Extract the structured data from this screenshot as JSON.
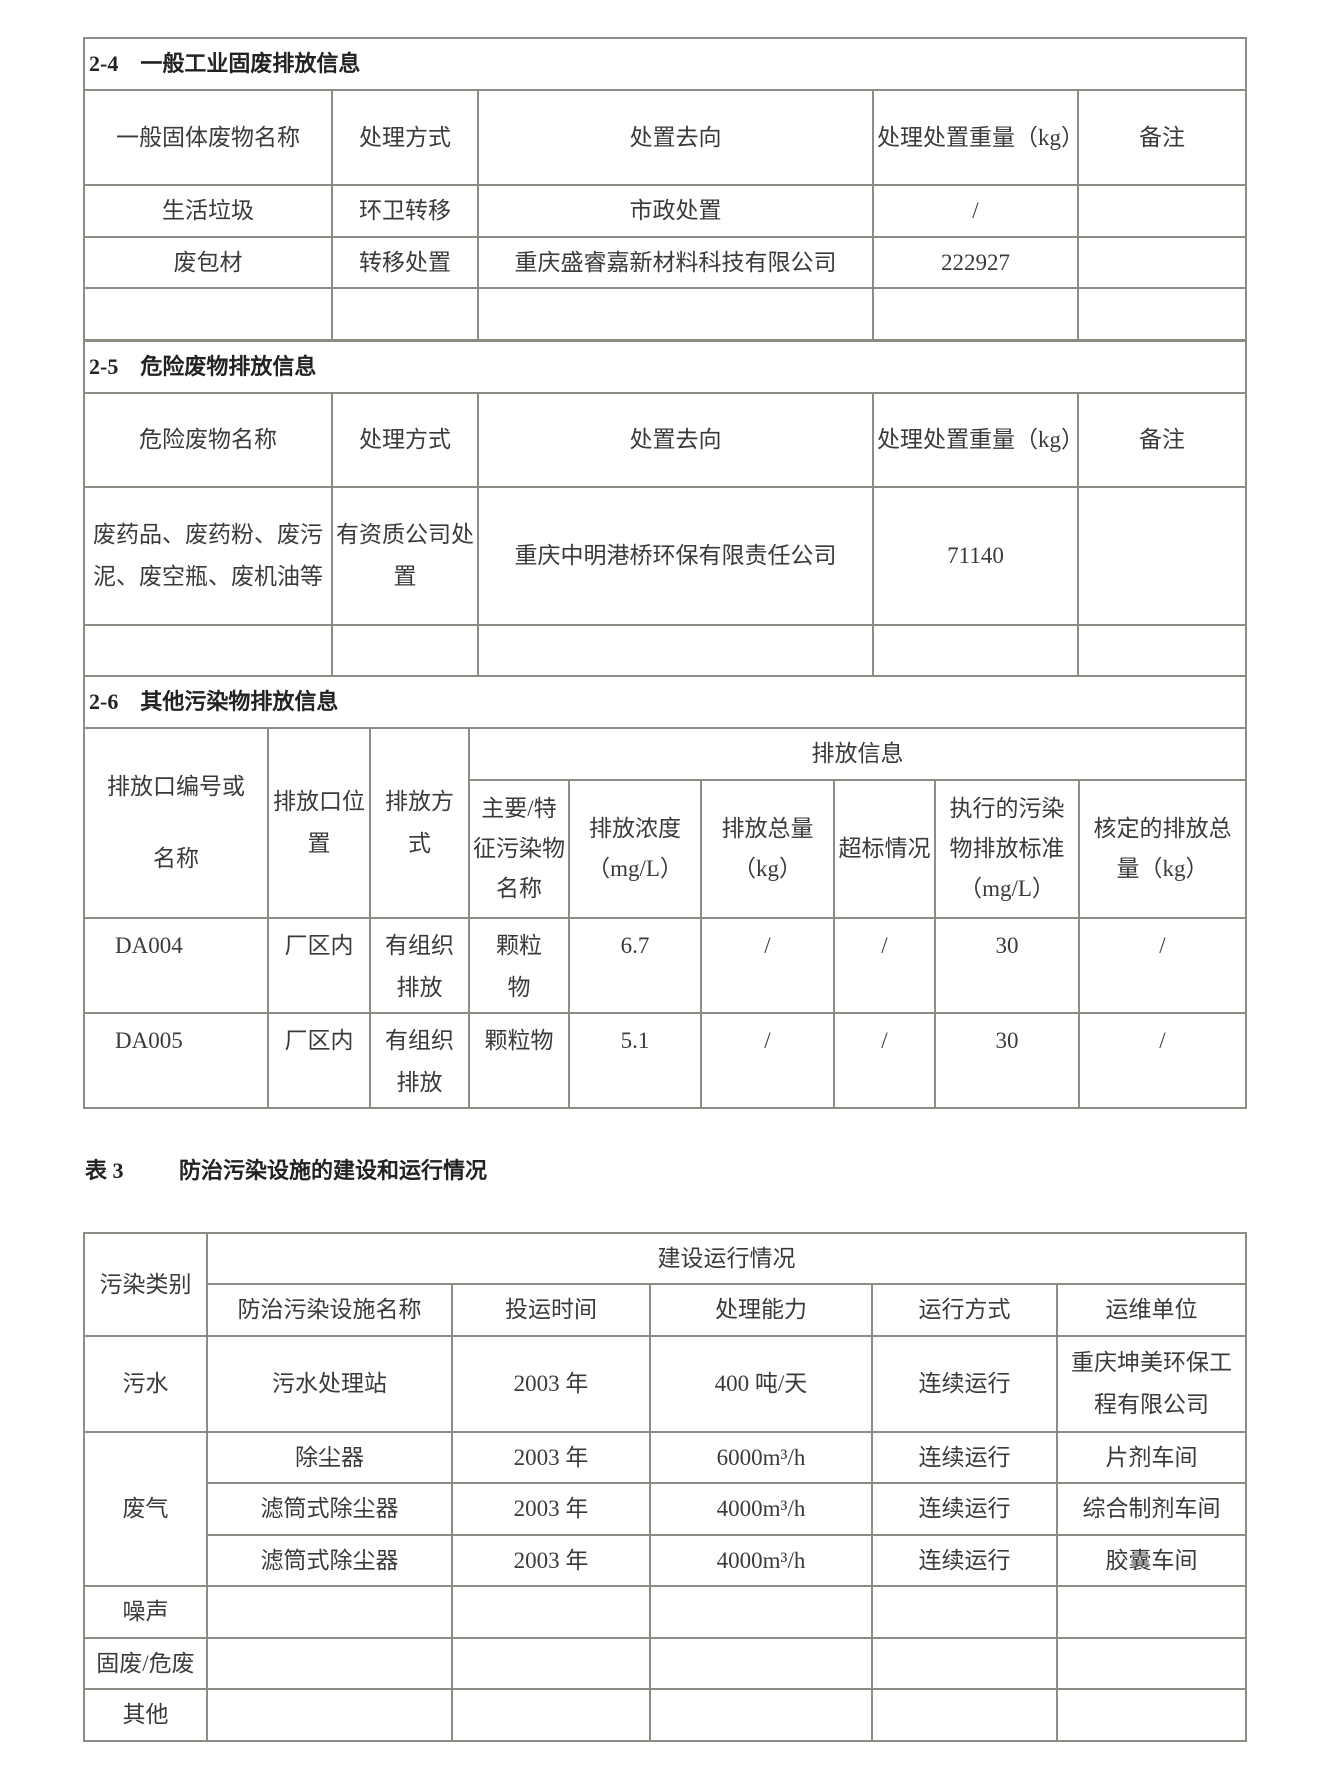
{
  "s24": {
    "title": "2-4　一般工业固废排放信息",
    "headers": [
      "一般固体废物名称",
      "处理方式",
      "处置去向",
      "处理处置重量（kg）",
      "备注"
    ],
    "rows": [
      [
        "生活垃圾",
        "环卫转移",
        "市政处置",
        "/",
        ""
      ],
      [
        "废包材",
        "转移处置",
        "重庆盛睿嘉新材料科技有限公司",
        "222927",
        ""
      ]
    ]
  },
  "s25": {
    "title": "2-5　危险废物排放信息",
    "headers": [
      "危险废物名称",
      "处理方式",
      "处置去向",
      "处理处置重量（kg）",
      "备注"
    ],
    "rows": [
      [
        "废药品、废药粉、废污泥、废空瓶、废机油等",
        "有资质公司处置",
        "重庆中明港桥环保有限责任公司",
        "71140",
        ""
      ]
    ]
  },
  "s26": {
    "title": "2-6　其他污染物排放信息",
    "headers": {
      "outlet_id": "排放口编号或名称",
      "location": "排放口位置",
      "method": "排放方式",
      "group": "排放信息",
      "sub": [
        "主要/特征污染物名称",
        "排放浓度（mg/L）",
        "排放总量（kg）",
        "超标情况",
        "执行的污染物排放标准（mg/L）",
        "核定的排放总量（kg）"
      ]
    },
    "rows": [
      [
        "DA004",
        "厂区内",
        "有组织排放",
        "颗粒物",
        "6.7",
        "/",
        "/",
        "30",
        "/"
      ],
      [
        "DA005",
        "厂区内",
        "有组织排放",
        "颗粒物",
        "5.1",
        "/",
        "/",
        "30",
        "/"
      ]
    ]
  },
  "t3": {
    "caption_no": "表 3",
    "caption": "防治污染设施的建设和运行情况",
    "headers": {
      "category": "污染类别",
      "group": "建设运行情况",
      "sub": [
        "防治污染设施名称",
        "投运时间",
        "处理能力",
        "运行方式",
        "运维单位"
      ]
    },
    "categories": [
      "污水",
      "废气",
      "噪声",
      "固废/危废",
      "其他"
    ],
    "rows": [
      [
        "污水处理站",
        "2003 年",
        "400 吨/天",
        "连续运行",
        "重庆坤美环保工程有限公司"
      ],
      [
        "除尘器",
        "2003 年",
        "6000m³/h",
        "连续运行",
        "片剂车间"
      ],
      [
        "滤筒式除尘器",
        "2003 年",
        "4000m³/h",
        "连续运行",
        "综合制剂车间"
      ],
      [
        "滤筒式除尘器",
        "2003 年",
        "4000m³/h",
        "连续运行",
        "胶囊车间"
      ]
    ]
  }
}
